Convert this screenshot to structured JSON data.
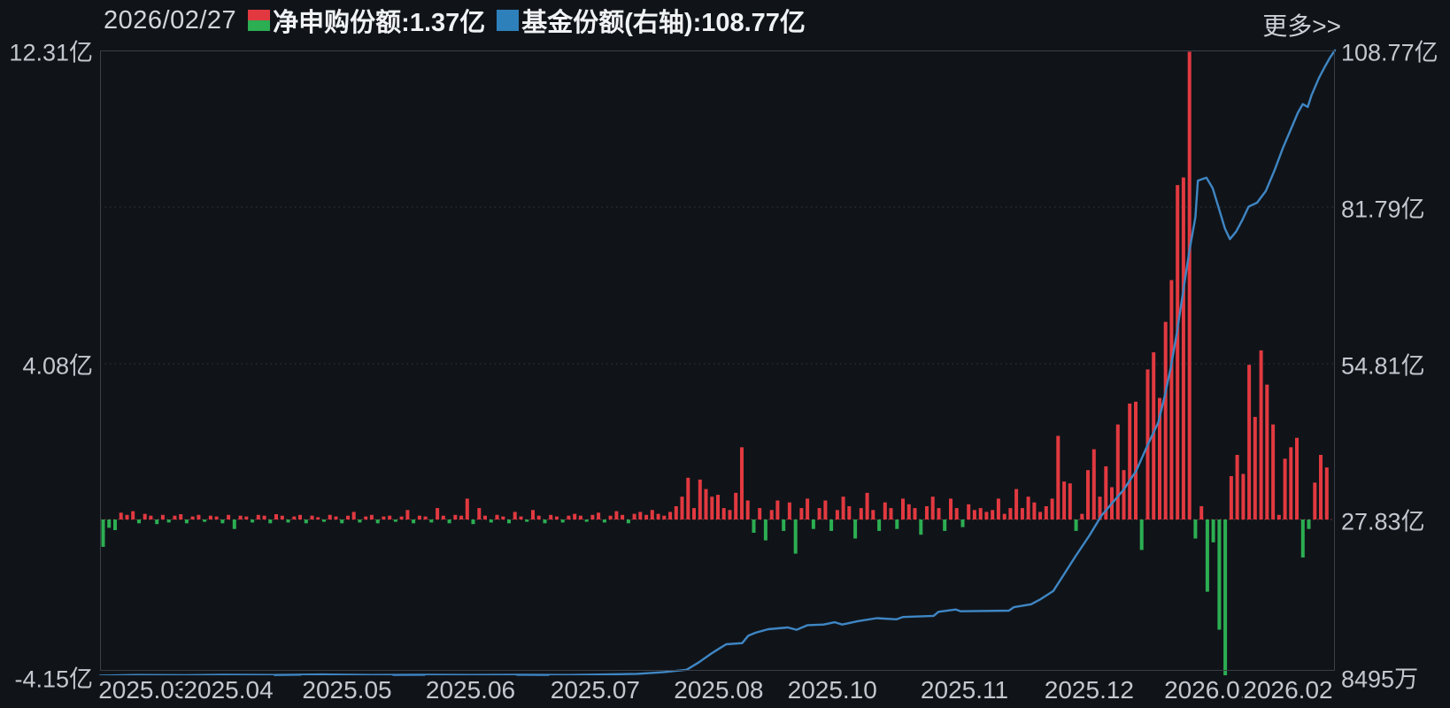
{
  "header": {
    "date": "2026/02/27",
    "legend": {
      "bar_label": "净申购份额:1.37亿",
      "line_label": "基金份额(右轴):108.77亿"
    },
    "more_link": "更多>>"
  },
  "colors": {
    "background": "#101419",
    "bar_positive": "#e23940",
    "bar_negative": "#2cae52",
    "line": "#3f86c4",
    "legend_line_swatch": "#2e80ba",
    "grid_dotted": "#4a5058",
    "zero_line_dotted": "#79323c",
    "plot_border": "#3a3f48",
    "axis_text": "#c3c7ce"
  },
  "chart_data": {
    "type": "bar+line",
    "title": "",
    "bar_series": {
      "name": "净申购份额",
      "unit": "亿",
      "current_value": "1.37亿",
      "values": [
        -0.72,
        -0.22,
        -0.28,
        0.18,
        0.12,
        0.22,
        -0.1,
        0.15,
        0.1,
        -0.12,
        0.12,
        -0.08,
        0.1,
        0.14,
        -0.1,
        0.08,
        0.12,
        -0.06,
        0.1,
        0.08,
        -0.1,
        0.12,
        -0.25,
        0.1,
        0.08,
        -0.08,
        0.12,
        0.1,
        -0.1,
        0.14,
        0.1,
        -0.08,
        0.08,
        0.12,
        -0.1,
        0.1,
        0.06,
        -0.06,
        0.12,
        0.08,
        -0.1,
        0.1,
        0.2,
        -0.08,
        0.08,
        0.12,
        -0.1,
        0.08,
        0.1,
        -0.06,
        0.08,
        0.25,
        -0.1,
        0.1,
        0.08,
        -0.08,
        0.3,
        0.1,
        -0.1,
        0.12,
        0.1,
        0.55,
        -0.12,
        0.3,
        0.1,
        -0.08,
        0.12,
        0.08,
        -0.1,
        0.2,
        0.08,
        -0.06,
        0.25,
        0.1,
        -0.1,
        0.12,
        0.08,
        -0.08,
        0.1,
        0.15,
        0.1,
        -0.06,
        0.12,
        0.18,
        -0.08,
        0.1,
        0.22,
        0.12,
        -0.1,
        0.15,
        0.2,
        0.12,
        0.25,
        0.15,
        0.1,
        0.2,
        0.35,
        0.6,
        1.1,
        0.3,
        1.05,
        0.8,
        0.6,
        0.65,
        0.3,
        0.25,
        0.7,
        1.9,
        0.5,
        -0.35,
        0.3,
        -0.55,
        0.25,
        0.5,
        -0.3,
        0.45,
        -0.9,
        0.3,
        0.55,
        -0.25,
        0.3,
        0.5,
        -0.3,
        0.25,
        0.6,
        0.35,
        -0.5,
        0.3,
        0.7,
        0.25,
        -0.3,
        0.45,
        0.3,
        -0.25,
        0.55,
        0.4,
        0.3,
        -0.4,
        0.35,
        0.6,
        0.3,
        -0.3,
        0.55,
        0.3,
        -0.2,
        0.4,
        0.25,
        0.3,
        0.2,
        0.25,
        0.55,
        0.15,
        0.3,
        0.8,
        0.3,
        0.6,
        0.45,
        0.2,
        0.35,
        0.55,
        2.2,
        1.0,
        0.95,
        -0.3,
        0.15,
        1.3,
        1.85,
        0.6,
        1.4,
        0.85,
        2.5,
        1.3,
        3.05,
        3.1,
        -0.8,
        3.95,
        4.4,
        3.2,
        5.2,
        6.3,
        8.8,
        9.0,
        12.31,
        -0.5,
        0.35,
        -1.9,
        -0.6,
        -2.9,
        -4.15,
        1.14,
        1.7,
        1.2,
        4.07,
        2.7,
        4.45,
        3.55,
        2.5,
        0.12,
        1.6,
        1.9,
        2.15,
        -1.0,
        -0.25,
        0.97,
        1.7,
        1.37
      ]
    },
    "line_series": {
      "name": "基金份额(右轴)",
      "unit": "亿",
      "current_value": "108.77亿",
      "points": [
        [
          0.0,
          0.9
        ],
        [
          0.03,
          1.0
        ],
        [
          0.07,
          0.95
        ],
        [
          0.1,
          1.05
        ],
        [
          0.14,
          1.0
        ],
        [
          0.18,
          1.1
        ],
        [
          0.22,
          1.0
        ],
        [
          0.26,
          1.05
        ],
        [
          0.3,
          1.0
        ],
        [
          0.34,
          1.05
        ],
        [
          0.38,
          1.0
        ],
        [
          0.41,
          1.1
        ],
        [
          0.435,
          1.2
        ],
        [
          0.457,
          1.5
        ],
        [
          0.475,
          1.9
        ],
        [
          0.485,
          3.2
        ],
        [
          0.495,
          4.7
        ],
        [
          0.501,
          5.5
        ],
        [
          0.507,
          6.3
        ],
        [
          0.52,
          6.5
        ],
        [
          0.525,
          7.8
        ],
        [
          0.531,
          8.3
        ],
        [
          0.541,
          8.9
        ],
        [
          0.557,
          9.2
        ],
        [
          0.564,
          8.8
        ],
        [
          0.573,
          9.6
        ],
        [
          0.586,
          9.7
        ],
        [
          0.595,
          10.1
        ],
        [
          0.601,
          9.7
        ],
        [
          0.614,
          10.3
        ],
        [
          0.629,
          10.8
        ],
        [
          0.645,
          10.6
        ],
        [
          0.65,
          11.0
        ],
        [
          0.675,
          11.2
        ],
        [
          0.679,
          11.9
        ],
        [
          0.693,
          12.3
        ],
        [
          0.697,
          12.0
        ],
        [
          0.736,
          12.1
        ],
        [
          0.74,
          12.7
        ],
        [
          0.754,
          13.2
        ],
        [
          0.761,
          14.0
        ],
        [
          0.772,
          15.5
        ],
        [
          0.781,
          18.5
        ],
        [
          0.79,
          21.5
        ],
        [
          0.801,
          25.0
        ],
        [
          0.811,
          28.5
        ],
        [
          0.821,
          31.0
        ],
        [
          0.829,
          33.0
        ],
        [
          0.839,
          36.2
        ],
        [
          0.849,
          41.0
        ],
        [
          0.857,
          44.6
        ],
        [
          0.862,
          49.0
        ],
        [
          0.867,
          54.0
        ],
        [
          0.872,
          60.0
        ],
        [
          0.877,
          67.0
        ],
        [
          0.882,
          74.0
        ],
        [
          0.887,
          80.0
        ],
        [
          0.889,
          86.3
        ],
        [
          0.896,
          86.8
        ],
        [
          0.901,
          85.0
        ],
        [
          0.906,
          81.5
        ],
        [
          0.911,
          78.0
        ],
        [
          0.915,
          76.2
        ],
        [
          0.92,
          77.5
        ],
        [
          0.925,
          79.5
        ],
        [
          0.93,
          81.8
        ],
        [
          0.937,
          82.5
        ],
        [
          0.944,
          84.5
        ],
        [
          0.951,
          88.0
        ],
        [
          0.958,
          92.0
        ],
        [
          0.964,
          95.0
        ],
        [
          0.97,
          98.0
        ],
        [
          0.974,
          99.5
        ],
        [
          0.978,
          99.0
        ],
        [
          0.981,
          101.0
        ],
        [
          0.987,
          104.0
        ],
        [
          0.992,
          106.0
        ],
        [
          0.996,
          107.5
        ],
        [
          1.0,
          108.77
        ]
      ]
    },
    "left_axis": {
      "min": -4.15,
      "max": 12.31,
      "zero_value": 0,
      "labels": [
        {
          "text": "12.31亿",
          "f": 0.0
        },
        {
          "text": "4.08亿",
          "f": 0.5
        },
        {
          "text": "-4.15亿",
          "f": 1.0
        }
      ]
    },
    "right_axis": {
      "min": 0.8495,
      "max": 108.77,
      "labels": [
        {
          "text": "108.77亿",
          "f": 0.0
        },
        {
          "text": "81.79亿",
          "f": 0.25
        },
        {
          "text": "54.81亿",
          "f": 0.5
        },
        {
          "text": "27.83亿",
          "f": 0.749
        },
        {
          "text": "8495万",
          "f": 1.0
        }
      ]
    },
    "x_axis": {
      "labels": [
        {
          "text": "2025.03",
          "f": 0.035
        },
        {
          "text": "2025.04",
          "f": 0.104
        },
        {
          "text": "2025.05",
          "f": 0.2
        },
        {
          "text": "2025.06",
          "f": 0.3
        },
        {
          "text": "2025.07",
          "f": 0.401
        },
        {
          "text": "2025.08",
          "f": 0.501
        },
        {
          "text": "2025.10",
          "f": 0.593
        },
        {
          "text": "2025.11",
          "f": 0.7
        },
        {
          "text": "2025.12",
          "f": 0.801
        },
        {
          "text": "2026.01",
          "f": 0.898
        },
        {
          "text": "2026.02",
          "f": 0.962
        }
      ]
    },
    "gridlines_f": [
      0.25,
      0.5
    ],
    "zero_line_f": 0.749,
    "legend_position": "top",
    "grid": "dotted-horizontal"
  }
}
